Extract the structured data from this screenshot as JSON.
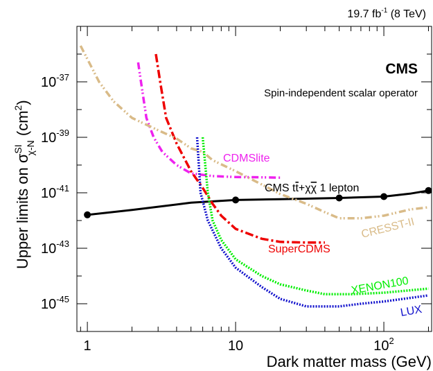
{
  "header": {
    "lumi_value": "19.7 fb",
    "lumi_exp": "-1",
    "lumi_energy": " (8 TeV)"
  },
  "experiment_label": "CMS",
  "operator_label": "Spin-independent scalar operator",
  "chart_data": {
    "type": "line",
    "x_scale": "log",
    "y_scale": "log",
    "xlim": [
      0.85,
      210
    ],
    "ylim": [
      1e-46,
      1e-35
    ],
    "xlabel": "Dark matter mass (GeV)",
    "ylabel": {
      "prefix": "Upper limits on σ",
      "sup": "SI",
      "sub": "χ-N",
      "unit_prefix": " (cm",
      "unit_exp": "2",
      "unit_suffix": ")"
    },
    "x_ticks": [
      {
        "value": 1,
        "label": "1"
      },
      {
        "value": 10,
        "label": "10"
      },
      {
        "value": 100,
        "label": "10",
        "exp": "2"
      }
    ],
    "y_ticks": [
      {
        "value": 1e-37,
        "label": "10",
        "exp": "-37"
      },
      {
        "value": 1e-39,
        "label": "10",
        "exp": "-39"
      },
      {
        "value": 1e-41,
        "label": "10",
        "exp": "-41"
      },
      {
        "value": 1e-43,
        "label": "10",
        "exp": "-43"
      },
      {
        "value": 1e-45,
        "label": "10",
        "exp": "-45"
      }
    ],
    "series": [
      {
        "name": "CMS tt̄+χχ̄ 1 lepton",
        "color": "#000000",
        "style": "solid-markers",
        "markers": [
          [
            1,
            1.6e-42
          ],
          [
            10,
            5.5e-42
          ],
          [
            50,
            6.5e-42
          ],
          [
            100,
            7.3e-42
          ],
          [
            200,
            1.2e-41
          ]
        ],
        "points": [
          [
            1,
            1.6e-42
          ],
          [
            2,
            2.4e-42
          ],
          [
            5,
            4.4e-42
          ],
          [
            10,
            5.5e-42
          ],
          [
            20,
            5.9e-42
          ],
          [
            50,
            6.5e-42
          ],
          [
            100,
            7.3e-42
          ],
          [
            150,
            9.3e-42
          ],
          [
            200,
            1.2e-41
          ]
        ]
      },
      {
        "name": "CDMSlite",
        "color": "#ee22ee",
        "style": "dash-dot-dot",
        "points": [
          [
            2.2,
            5e-37
          ],
          [
            2.3,
            1e-37
          ],
          [
            2.5,
            5e-39
          ],
          [
            2.8,
            1e-39
          ],
          [
            3.2,
            3e-40
          ],
          [
            4,
            1e-40
          ],
          [
            5,
            5e-41
          ],
          [
            7,
            4e-41
          ],
          [
            10,
            3.7e-41
          ],
          [
            15,
            3.6e-41
          ],
          [
            20,
            3.5e-41
          ]
        ]
      },
      {
        "name": "SuperCDMS",
        "color": "#ee0000",
        "style": "dash-dot",
        "points": [
          [
            2.9,
            1e-36
          ],
          [
            3.1,
            1e-37
          ],
          [
            3.4,
            5e-39
          ],
          [
            4,
            6e-40
          ],
          [
            5,
            6e-41
          ],
          [
            6,
            1.5e-41
          ],
          [
            7,
            4e-42
          ],
          [
            8,
            1.5e-42
          ],
          [
            10,
            5e-43
          ],
          [
            15,
            2.2e-43
          ],
          [
            20,
            1.7e-43
          ],
          [
            30,
            1.6e-43
          ],
          [
            40,
            1.6e-43
          ]
        ]
      },
      {
        "name": "CRESST-II",
        "color": "#d9bb88",
        "style": "dash-dot-dot",
        "points": [
          [
            0.9,
            2e-36
          ],
          [
            1.2,
            1e-37
          ],
          [
            1.5,
            2e-38
          ],
          [
            2,
            5e-39
          ],
          [
            3,
            1.8e-39
          ],
          [
            4,
            9e-40
          ],
          [
            5,
            4e-40
          ],
          [
            6,
            3e-40
          ],
          [
            7,
            1.5e-40
          ],
          [
            10,
            6e-41
          ],
          [
            15,
            2e-41
          ],
          [
            20,
            9e-42
          ],
          [
            30,
            4e-42
          ],
          [
            40,
            2e-42
          ],
          [
            50,
            1.2e-42
          ],
          [
            70,
            1.2e-42
          ],
          [
            100,
            1.5e-42
          ],
          [
            150,
            2.5e-42
          ],
          [
            200,
            3e-42
          ]
        ]
      },
      {
        "name": "XENON100",
        "color": "#00ee00",
        "style": "dotted",
        "points": [
          [
            6,
            1e-39
          ],
          [
            6.5,
            1e-41
          ],
          [
            7,
            1e-42
          ],
          [
            8,
            2e-43
          ],
          [
            10,
            4e-44
          ],
          [
            15,
            1e-44
          ],
          [
            20,
            5e-45
          ],
          [
            30,
            3e-45
          ],
          [
            40,
            2.2e-45
          ],
          [
            60,
            2.2e-45
          ],
          [
            100,
            2.5e-45
          ],
          [
            200,
            3.5e-45
          ]
        ]
      },
      {
        "name": "LUX",
        "color": "#1111cc",
        "style": "dotted",
        "points": [
          [
            5.5,
            1e-39
          ],
          [
            5.8,
            1e-41
          ],
          [
            6.5,
            1e-42
          ],
          [
            8,
            1e-43
          ],
          [
            10,
            2e-44
          ],
          [
            15,
            4e-45
          ],
          [
            20,
            1.5e-45
          ],
          [
            30,
            8e-46
          ],
          [
            50,
            8e-46
          ],
          [
            70,
            1e-45
          ],
          [
            100,
            1.2e-45
          ],
          [
            200,
            2e-45
          ]
        ]
      }
    ],
    "annotations": [
      {
        "series": "CDMSlite",
        "text": "CDMSlite",
        "color": "#ee22ee"
      },
      {
        "series": "CMS",
        "text": "CMS tt̄+χχ̄ 1 lepton",
        "color": "#000000"
      },
      {
        "series": "CRESST-II",
        "text": "CRESST-II",
        "color": "#d9bb88"
      },
      {
        "series": "SuperCDMS",
        "text": "SuperCDMS",
        "color": "#ee0000"
      },
      {
        "series": "XENON100",
        "text": "XENON100",
        "color": "#00ee00"
      },
      {
        "series": "LUX",
        "text": "LUX",
        "color": "#1111cc"
      }
    ]
  }
}
